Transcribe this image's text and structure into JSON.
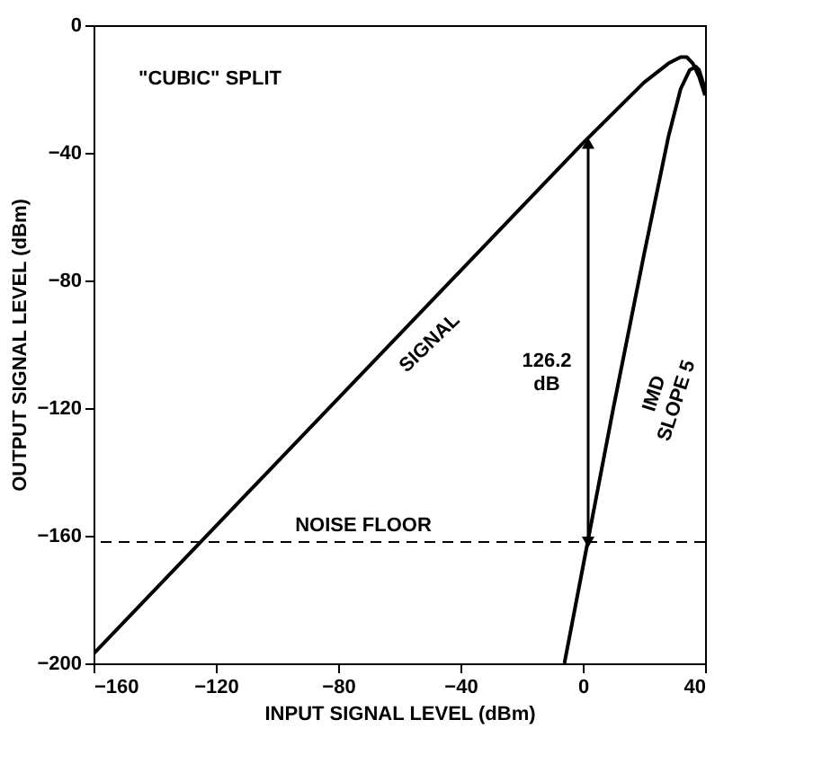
{
  "chart_data": {
    "type": "line",
    "xlabel": "INPUT SIGNAL LEVEL (dBm)",
    "ylabel": "OUTPUT SIGNAL LEVEL (dBm)",
    "xlim": [
      -160,
      40
    ],
    "ylim": [
      -200,
      0
    ],
    "xticks": [
      -160,
      -120,
      -80,
      -40,
      0,
      40
    ],
    "yticks": [
      -200,
      -160,
      -120,
      -80,
      -40,
      0
    ],
    "grid": false,
    "line_style": "solid",
    "marker": "none",
    "series": [
      {
        "color": "#000000",
        "x": [
          -160,
          -100,
          -40,
          0,
          20,
          28,
          32,
          34,
          36,
          38,
          40
        ],
        "values": [
          -197,
          -137,
          -77,
          -37,
          -18,
          -12,
          -10,
          -10,
          -12,
          -16,
          -22
        ]
      },
      {
        "color": "#000000",
        "x": [
          -6,
          0,
          10,
          20,
          28,
          32,
          35,
          37,
          38,
          39,
          40
        ],
        "values": [
          -200,
          -170,
          -120,
          -72,
          -35,
          -20,
          -14,
          -13,
          -14,
          -17,
          -20
        ]
      }
    ],
    "ref_lines": [
      {
        "axis": "y",
        "value": -162,
        "label": "NOISE FLOOR",
        "line_style": "dashed",
        "color": "#000000"
      }
    ],
    "annotations": [
      "\"CUBIC\" SPLIT",
      "SIGNAL",
      "126.2 dB",
      "IMD SLOPE 5"
    ]
  }
}
